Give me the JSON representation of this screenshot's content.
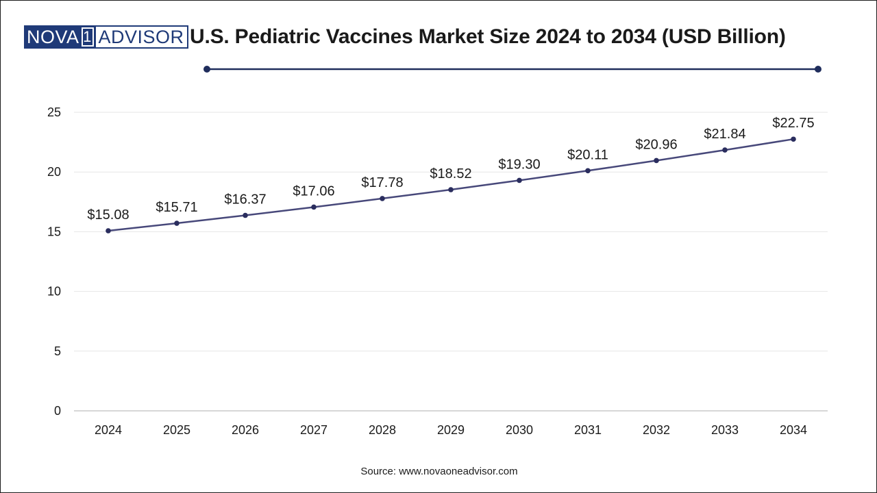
{
  "logo": {
    "left": "NOVA",
    "one": "1",
    "right": "ADVISOR"
  },
  "title": "U.S. Pediatric Vaccines Market Size 2024 to 2034 (USD Billion)",
  "source": "Source: www.novaoneadvisor.com",
  "colors": {
    "line": "#47487a",
    "marker": "#2a2d5e",
    "accent": "#1f2d5c",
    "grid": "#e6e6e6",
    "axis": "#bfbfbf"
  },
  "chart_data": {
    "type": "line",
    "title": "U.S. Pediatric Vaccines Market Size 2024 to 2034 (USD Billion)",
    "xlabel": "",
    "ylabel": "",
    "categories": [
      "2024",
      "2025",
      "2026",
      "2027",
      "2028",
      "2029",
      "2030",
      "2031",
      "2032",
      "2033",
      "2034"
    ],
    "values": [
      15.08,
      15.71,
      16.37,
      17.06,
      17.78,
      18.52,
      19.3,
      20.11,
      20.96,
      21.84,
      22.75
    ],
    "labels": [
      "$15.08",
      "$15.71",
      "$16.37",
      "$17.06",
      "$17.78",
      "$18.52",
      "$19.30",
      "$20.11",
      "$20.96",
      "$21.84",
      "$22.75"
    ],
    "ylim": [
      0,
      25
    ],
    "yticks": [
      0,
      5,
      10,
      15,
      20,
      25
    ],
    "grid": true,
    "legend": "none"
  }
}
